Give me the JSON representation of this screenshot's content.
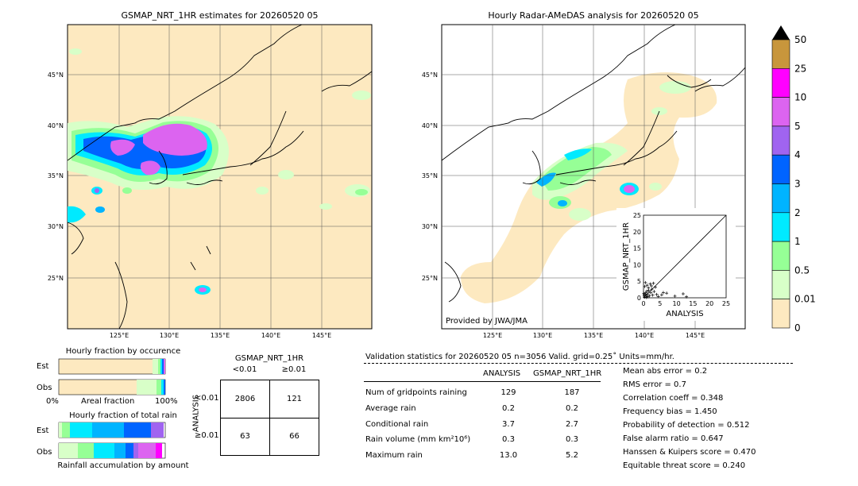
{
  "left_map": {
    "title": "GSMAP_NRT_1HR estimates for 20260520 05",
    "lat_labels": [
      "45°N",
      "40°N",
      "35°N",
      "30°N",
      "25°N"
    ],
    "lon_labels": [
      "125°E",
      "130°E",
      "135°E",
      "140°E",
      "145°E"
    ]
  },
  "right_map": {
    "title": "Hourly Radar-AMeDAS analysis for 20260520 05",
    "lat_labels": [
      "45°N",
      "40°N",
      "35°N",
      "30°N",
      "25°N"
    ],
    "lon_labels": [
      "125°E",
      "130°E",
      "135°E",
      "140°E",
      "145°E"
    ],
    "credit": "Provided by JWA/JMA"
  },
  "colorbar": {
    "levels": [
      "50",
      "25",
      "10",
      "5",
      "4",
      "3",
      "2",
      "1",
      "0.5",
      "0.01",
      "0"
    ],
    "colors": [
      "#c8963c",
      "#ff00ff",
      "#dc64f0",
      "#a064f0",
      "#0064ff",
      "#00b4ff",
      "#00eaff",
      "#96ff96",
      "#d8ffc8",
      "#fde9c0"
    ]
  },
  "occurrence": {
    "title": "Hourly fraction by occurence",
    "rows": [
      "Est",
      "Obs"
    ],
    "axis_left": "0%",
    "axis_mid": "Areal fraction",
    "axis_right": "100%"
  },
  "total_rain": {
    "title": "Hourly fraction of total rain",
    "rows": [
      "Est",
      "Obs"
    ],
    "caption": "Rainfall accumulation by amount"
  },
  "contingency": {
    "top_title": "GSMAP_NRT_1HR",
    "col_labels": [
      "<0.01",
      "≥0.01"
    ],
    "side_title": "ANALYSIS",
    "row_labels": [
      "<0.01",
      "≥0.01"
    ],
    "cells": [
      "2806",
      "121",
      "63",
      "66"
    ]
  },
  "validation": {
    "header": "Validation statistics for 20260520 05  n=3056 Valid. grid=0.25˚ Units=mm/hr.",
    "col_analysis": "ANALYSIS",
    "col_gsmap": "GSMAP_NRT_1HR",
    "rows": [
      {
        "label": "Num of gridpoints raining",
        "analysis": "129",
        "gsmap": "187"
      },
      {
        "label": "Average rain",
        "analysis": "0.2",
        "gsmap": "0.2"
      },
      {
        "label": "Conditional rain",
        "analysis": "3.7",
        "gsmap": "2.7"
      },
      {
        "label": "Rain volume (mm km²10⁶)",
        "analysis": "0.3",
        "gsmap": "0.3"
      },
      {
        "label": "Maximum rain",
        "analysis": "13.0",
        "gsmap": "5.2"
      }
    ],
    "scores": [
      "Mean abs error =    0.2",
      "RMS error =    0.7",
      "Correlation coeff =  0.348",
      "Frequency bias =  1.450",
      "Probability of detection =  0.512",
      "False alarm ratio =  0.647",
      "Hanssen & Kuipers score =  0.470",
      "Equitable threat score =  0.240"
    ]
  },
  "chart_data": {
    "type": "scatter",
    "xlabel": "ANALYSIS",
    "ylabel": "GSMAP_NRT_1HR",
    "xlim": [
      0,
      25
    ],
    "ylim": [
      0,
      25
    ],
    "ticks": [
      "0",
      "5",
      "10",
      "15",
      "20",
      "25"
    ],
    "points": [
      [
        0.3,
        0.2
      ],
      [
        0.5,
        1.0
      ],
      [
        0.8,
        0.5
      ],
      [
        1.0,
        2.0
      ],
      [
        1.2,
        1.1
      ],
      [
        1.5,
        3.0
      ],
      [
        1.8,
        0.6
      ],
      [
        2.0,
        4.2
      ],
      [
        2.2,
        1.5
      ],
      [
        2.5,
        2.6
      ],
      [
        0.4,
        3.4
      ],
      [
        0.6,
        4.6
      ],
      [
        1.1,
        3.8
      ],
      [
        0.2,
        0.9
      ],
      [
        0.9,
        0.1
      ],
      [
        1.6,
        2.2
      ],
      [
        2.8,
        0.8
      ],
      [
        3.2,
        1.9
      ],
      [
        3.6,
        3.2
      ],
      [
        4.0,
        1.0
      ],
      [
        4.5,
        0.4
      ],
      [
        5.5,
        0.9
      ],
      [
        6.0,
        1.6
      ],
      [
        7.0,
        1.4
      ],
      [
        9.5,
        0.5
      ],
      [
        12.0,
        1.2
      ],
      [
        13.0,
        0.3
      ],
      [
        0.7,
        1.6
      ],
      [
        1.3,
        0.3
      ],
      [
        2.4,
        3.6
      ],
      [
        0.1,
        1.3
      ],
      [
        3.0,
        4.4
      ]
    ]
  }
}
